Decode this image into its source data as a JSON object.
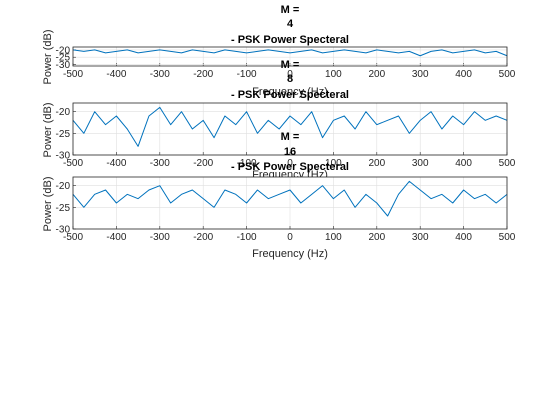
{
  "colors": {
    "line": "#0072bd",
    "axis": "#262626",
    "grid": "#dfdfdf"
  },
  "chart_data": [
    {
      "type": "line",
      "title_lines": [
        "M =",
        "4",
        "- PSK Power Specteral"
      ],
      "xlabel": "Frequency (Hz)",
      "ylabel": "Power (dB)",
      "xlim": [
        -500,
        500
      ],
      "ylim": [
        -31,
        -18
      ],
      "xticks": [
        -500,
        -400,
        -300,
        -200,
        -100,
        0,
        100,
        200,
        300,
        400,
        500
      ],
      "yticks": [
        -20,
        -25,
        -30
      ],
      "grid": true,
      "series": [
        {
          "x": [
            -500,
            -475,
            -450,
            -425,
            -400,
            -375,
            -350,
            -325,
            -300,
            -275,
            -250,
            -225,
            -200,
            -175,
            -150,
            -125,
            -100,
            -75,
            -50,
            -25,
            0,
            25,
            50,
            75,
            100,
            125,
            150,
            175,
            200,
            225,
            250,
            275,
            300,
            325,
            350,
            375,
            400,
            425,
            450,
            475,
            500
          ],
          "values": [
            -20,
            -21,
            -20,
            -22,
            -21,
            -20,
            -22,
            -21,
            -20,
            -21,
            -22,
            -20,
            -21,
            -22,
            -20,
            -21,
            -22,
            -21,
            -20,
            -21,
            -22,
            -21,
            -20,
            -22,
            -21,
            -20,
            -21,
            -22,
            -20,
            -21,
            -22,
            -21,
            -24,
            -21,
            -20,
            -22,
            -21,
            -20,
            -22,
            -21,
            -24
          ]
        }
      ]
    },
    {
      "type": "line",
      "title_lines": [
        "M =",
        "8",
        "- PSK Power Specteral"
      ],
      "xlabel": "Frequency (Hz)",
      "ylabel": "Power (dB)",
      "xlim": [
        -500,
        500
      ],
      "ylim": [
        -30,
        -18
      ],
      "xticks": [
        -500,
        -400,
        -300,
        -200,
        -100,
        0,
        100,
        200,
        300,
        400,
        500
      ],
      "yticks": [
        -20,
        -25,
        -30
      ],
      "grid": true,
      "series": [
        {
          "x": [
            -500,
            -475,
            -450,
            -425,
            -400,
            -375,
            -350,
            -325,
            -300,
            -275,
            -250,
            -225,
            -200,
            -175,
            -150,
            -125,
            -100,
            -75,
            -50,
            -25,
            0,
            25,
            50,
            75,
            100,
            125,
            150,
            175,
            200,
            225,
            250,
            275,
            300,
            325,
            350,
            375,
            400,
            425,
            450,
            475,
            500
          ],
          "values": [
            -22,
            -25,
            -20,
            -23,
            -21,
            -24,
            -28,
            -21,
            -19,
            -23,
            -20,
            -24,
            -22,
            -26,
            -21,
            -23,
            -20,
            -25,
            -22,
            -24,
            -21,
            -23,
            -20,
            -26,
            -22,
            -21,
            -24,
            -20,
            -23,
            -22,
            -21,
            -25,
            -22,
            -20,
            -24,
            -21,
            -23,
            -20,
            -22,
            -21,
            -22
          ]
        }
      ]
    },
    {
      "type": "line",
      "title_lines": [
        "M =",
        "16",
        "- PSK Power Specteral"
      ],
      "xlabel": "Frequency (Hz)",
      "ylabel": "Power (dB)",
      "xlim": [
        -500,
        500
      ],
      "ylim": [
        -30,
        -18
      ],
      "xticks": [
        -500,
        -400,
        -300,
        -200,
        -100,
        0,
        100,
        200,
        300,
        400,
        500
      ],
      "yticks": [
        -20,
        -25,
        -30
      ],
      "grid": true,
      "series": [
        {
          "x": [
            -500,
            -475,
            -450,
            -425,
            -400,
            -375,
            -350,
            -325,
            -300,
            -275,
            -250,
            -225,
            -200,
            -175,
            -150,
            -125,
            -100,
            -75,
            -50,
            -25,
            0,
            25,
            50,
            75,
            100,
            125,
            150,
            175,
            200,
            225,
            250,
            275,
            300,
            325,
            350,
            375,
            400,
            425,
            450,
            475,
            500
          ],
          "values": [
            -22,
            -25,
            -22,
            -21,
            -24,
            -22,
            -23,
            -21,
            -20,
            -24,
            -22,
            -21,
            -23,
            -25,
            -21,
            -22,
            -24,
            -21,
            -23,
            -22,
            -21,
            -24,
            -22,
            -20,
            -23,
            -21,
            -25,
            -22,
            -24,
            -27,
            -22,
            -19,
            -21,
            -23,
            -22,
            -24,
            -21,
            -23,
            -22,
            -24,
            -22
          ]
        }
      ]
    }
  ]
}
